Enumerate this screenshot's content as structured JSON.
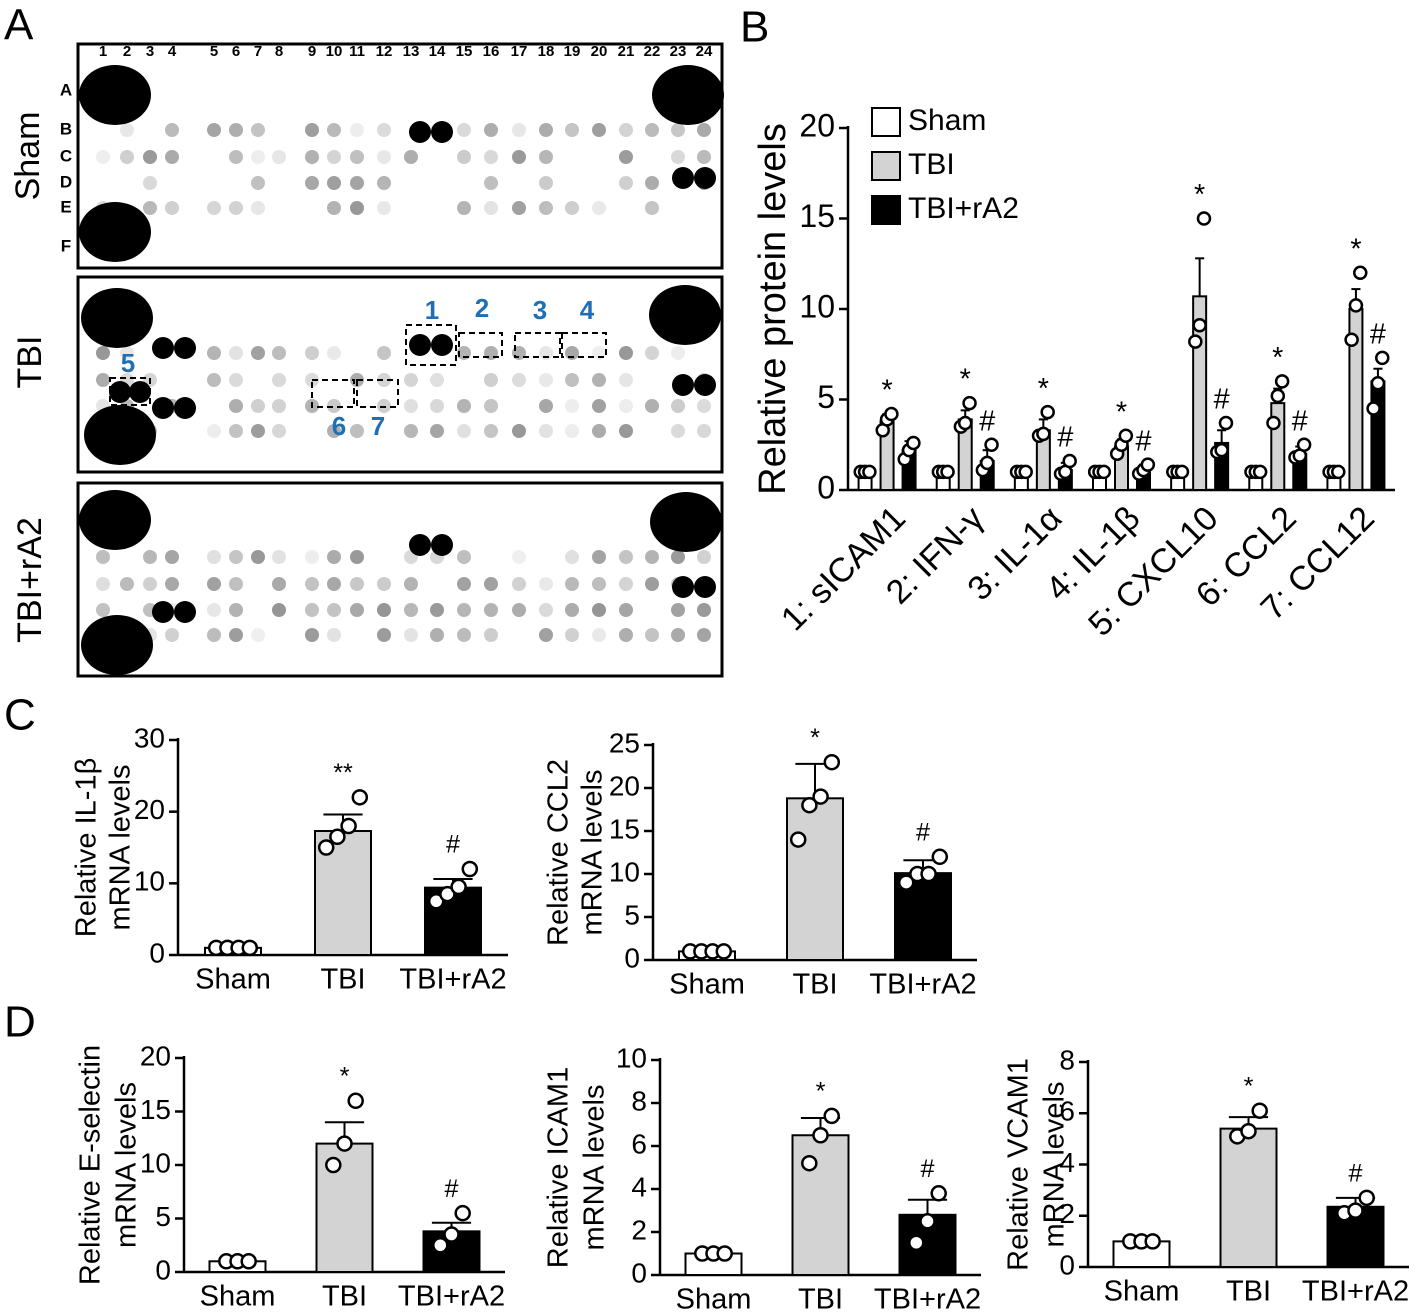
{
  "blot": {
    "panel": "A",
    "columns": [
      1,
      2,
      3,
      4,
      5,
      6,
      7,
      8,
      9,
      10,
      11,
      12,
      13,
      14,
      15,
      16,
      17,
      18,
      19,
      20,
      21,
      22,
      23,
      24
    ],
    "rows": [
      "A",
      "B",
      "C",
      "D",
      "E",
      "F"
    ],
    "conditions": [
      "Sham",
      "TBI",
      "TBI+rA2"
    ],
    "box_labels": [
      1,
      2,
      3,
      4,
      5,
      6,
      7
    ]
  },
  "chart_data": [
    {
      "type": "grouped-bar",
      "panel": "B",
      "ylabel": "Relative protein levels",
      "categories": [
        "1: sICAM1",
        "2: IFN-γ",
        "3: IL-1α",
        "4: IL-1β",
        "5: CXCL10",
        "6: CCL2",
        "7: CCL12"
      ],
      "series": [
        {
          "name": "Sham",
          "color": "#ffffff",
          "values": [
            1,
            1,
            1,
            1,
            1,
            1,
            1
          ],
          "errors": [
            0,
            0,
            0,
            0,
            0,
            0,
            0
          ],
          "points": [
            [
              1,
              1,
              1
            ],
            [
              1,
              1,
              1
            ],
            [
              1,
              1,
              1
            ],
            [
              1,
              1,
              1
            ],
            [
              1,
              1,
              1
            ],
            [
              1,
              1,
              1
            ],
            [
              1,
              1,
              1
            ]
          ],
          "annotations": [
            null,
            null,
            null,
            null,
            null,
            null,
            null
          ]
        },
        {
          "name": "TBI",
          "color": "#d3d3d3",
          "values": [
            3.8,
            3.9,
            3.3,
            2.4,
            10.7,
            4.8,
            10
          ],
          "errors": [
            0.4,
            0.5,
            0.6,
            0.4,
            2.1,
            0.8,
            1.1
          ],
          "points": [
            [
              3.3,
              3.9,
              4.2
            ],
            [
              3.5,
              3.7,
              4.8
            ],
            [
              3.0,
              3.1,
              4.3
            ],
            [
              2.0,
              2.5,
              3.0
            ],
            [
              8.2,
              9.1,
              15
            ],
            [
              3.7,
              5.2,
              6.0
            ],
            [
              8.3,
              10.2,
              12.0
            ]
          ],
          "annotations": [
            "*",
            "*",
            "*",
            "*",
            "*",
            "*",
            "*"
          ]
        },
        {
          "name": "TBI+rA2",
          "color": "#000000",
          "values": [
            2.2,
            1.6,
            1.1,
            1.1,
            2.6,
            2.0,
            6.0
          ],
          "errors": [
            0.5,
            0.6,
            0.4,
            0.3,
            0.7,
            0.4,
            0.7
          ],
          "points": [
            [
              1.7,
              2.2,
              2.6
            ],
            [
              1.1,
              1.5,
              2.5
            ],
            [
              0.9,
              1.0,
              1.6
            ],
            [
              0.9,
              1.1,
              1.4
            ],
            [
              2.1,
              2.2,
              3.7
            ],
            [
              1.8,
              1.9,
              2.5
            ],
            [
              4.5,
              5.9,
              7.3
            ]
          ],
          "annotations": [
            null,
            "#",
            "#",
            "#",
            "#",
            "#",
            "#"
          ]
        }
      ],
      "ylim": [
        0,
        20
      ],
      "yticks": [
        0,
        5,
        10,
        15,
        20
      ],
      "legend": "upper left"
    },
    {
      "type": "bar",
      "panel": "C",
      "ylabel": [
        "Relative IL-1β",
        "mRNA levels"
      ],
      "categories": [
        "Sham",
        "TBI",
        "TBI+rA2"
      ],
      "colors": [
        "#ffffff",
        "#d3d3d3",
        "#000000"
      ],
      "values": [
        1,
        17.3,
        9.4
      ],
      "errors": [
        0,
        2.3,
        1.2
      ],
      "points": [
        [
          1,
          1,
          1,
          1
        ],
        [
          15,
          16.5,
          18,
          22
        ],
        [
          7.5,
          8.5,
          9.5,
          12
        ]
      ],
      "annotations": [
        null,
        "**",
        "#"
      ],
      "ylim": [
        0,
        30
      ],
      "yticks": [
        0,
        10,
        20,
        30
      ]
    },
    {
      "type": "bar",
      "ylabel": [
        "Relative CCL2",
        "mRNA levels"
      ],
      "categories": [
        "Sham",
        "TBI",
        "TBI+rA2"
      ],
      "colors": [
        "#ffffff",
        "#d3d3d3",
        "#000000"
      ],
      "values": [
        1,
        18.8,
        10.1
      ],
      "errors": [
        0,
        4,
        1.5
      ],
      "points": [
        [
          1,
          1,
          1,
          1
        ],
        [
          14,
          18,
          19,
          23
        ],
        [
          9,
          10,
          10,
          12
        ]
      ],
      "annotations": [
        null,
        "*",
        "#"
      ],
      "ylim": [
        0,
        25
      ],
      "yticks": [
        0,
        5,
        10,
        15,
        20,
        25
      ]
    },
    {
      "type": "bar",
      "panel": "D",
      "ylabel": [
        "Relative E-selectin",
        "mRNA levels"
      ],
      "categories": [
        "Sham",
        "TBI",
        "TBI+rA2"
      ],
      "colors": [
        "#ffffff",
        "#d3d3d3",
        "#000000"
      ],
      "values": [
        1,
        12,
        3.8
      ],
      "errors": [
        0,
        2,
        0.8
      ],
      "points": [
        [
          1,
          1,
          1
        ],
        [
          10,
          12,
          16
        ],
        [
          2.5,
          3.5,
          5.5
        ]
      ],
      "annotations": [
        null,
        "*",
        "#"
      ],
      "ylim": [
        0,
        20
      ],
      "yticks": [
        0,
        5,
        10,
        15,
        20
      ]
    },
    {
      "type": "bar",
      "ylabel": [
        "Relative ICAM1",
        "mRNA levels"
      ],
      "categories": [
        "Sham",
        "TBI",
        "TBI+rA2"
      ],
      "colors": [
        "#ffffff",
        "#d3d3d3",
        "#000000"
      ],
      "values": [
        1,
        6.5,
        2.8
      ],
      "errors": [
        0,
        0.8,
        0.7
      ],
      "points": [
        [
          1,
          1,
          1
        ],
        [
          5.2,
          6.5,
          7.4
        ],
        [
          1.5,
          2.5,
          3.8
        ]
      ],
      "annotations": [
        null,
        "*",
        "#"
      ],
      "ylim": [
        0,
        10
      ],
      "yticks": [
        0,
        2,
        4,
        6,
        8,
        10
      ]
    },
    {
      "type": "bar",
      "ylabel": [
        "Relative VCAM1",
        "mRNA levels"
      ],
      "categories": [
        "Sham",
        "TBI",
        "TBI+rA2"
      ],
      "colors": [
        "#ffffff",
        "#d3d3d3",
        "#000000"
      ],
      "values": [
        1,
        5.4,
        2.35
      ],
      "errors": [
        0,
        0.45,
        0.35
      ],
      "points": [
        [
          1,
          1,
          1
        ],
        [
          5.1,
          5.3,
          6.1
        ],
        [
          2.1,
          2.2,
          2.7
        ]
      ],
      "annotations": [
        null,
        "*",
        "#"
      ],
      "ylim": [
        0,
        8
      ],
      "yticks": [
        0,
        2,
        4,
        6,
        8
      ]
    }
  ]
}
